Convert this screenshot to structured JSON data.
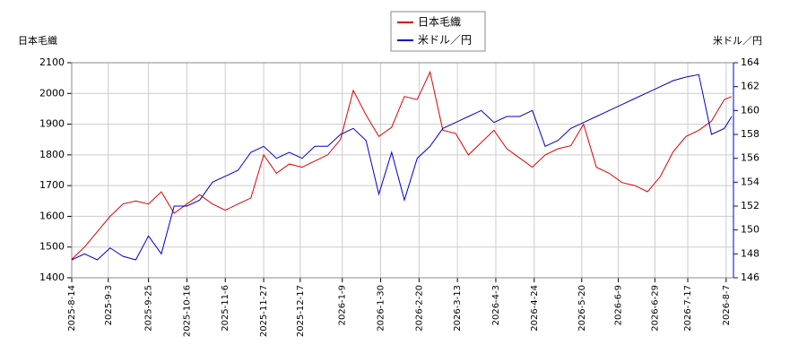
{
  "chart_data": {
    "type": "line",
    "ylabel": "日本毛織",
    "y2label": "米ドル／円",
    "x": [
      "2025-8-14",
      "2025-8-21",
      "2025-8-28",
      "2025-9-4",
      "2025-9-11",
      "2025-9-18",
      "2025-9-25",
      "2025-10-2",
      "2025-10-9",
      "2025-10-16",
      "2025-10-23",
      "2025-10-30",
      "2025-11-6",
      "2025-11-13",
      "2025-11-20",
      "2025-11-27",
      "2025-12-4",
      "2025-12-11",
      "2025-12-18",
      "2025-12-25",
      "2026-1-1",
      "2026-1-8",
      "2026-1-15",
      "2026-1-22",
      "2026-1-29",
      "2026-2-5",
      "2026-2-12",
      "2026-2-19",
      "2026-2-26",
      "2026-3-5",
      "2026-3-12",
      "2026-3-19",
      "2026-3-26",
      "2026-4-2",
      "2026-4-9",
      "2026-4-16",
      "2026-4-23",
      "2026-4-30",
      "2026-5-7",
      "2026-5-14",
      "2026-5-21",
      "2026-5-28",
      "2026-6-4",
      "2026-6-11",
      "2026-6-18",
      "2026-6-25",
      "2026-7-2",
      "2026-7-9",
      "2026-7-16",
      "2026-7-23",
      "2026-7-30",
      "2026-8-6",
      "2026-8-10"
    ],
    "series": [
      {
        "name": "日本毛織",
        "color": "#dd0000",
        "values": [
          1460,
          1500,
          1550,
          1600,
          1640,
          1650,
          1640,
          1680,
          1610,
          1640,
          1670,
          1640,
          1620,
          1640,
          1660,
          1800,
          1740,
          1770,
          1760,
          1780,
          1800,
          1850,
          2010,
          1930,
          1860,
          1890,
          1990,
          1980,
          2070,
          1880,
          1870,
          1800,
          1840,
          1880,
          1820,
          1790,
          1760,
          1800,
          1820,
          1830,
          1900,
          1760,
          1740,
          1710,
          1700,
          1680,
          1730,
          1810,
          1860,
          1880,
          1910,
          1980,
          1990
        ]
      },
      {
        "name": "米ドル／円",
        "color": "#0000cc",
        "axis": "y2",
        "values": [
          147.5,
          148,
          147.5,
          148.5,
          147.8,
          147.5,
          149.5,
          148,
          152,
          152,
          152.5,
          154,
          154.5,
          155,
          156.5,
          157,
          156,
          156.5,
          156,
          157,
          157,
          158,
          158.5,
          157.5,
          153,
          156.5,
          152.5,
          156,
          157,
          158.5,
          159,
          159.5,
          160,
          159,
          159.5,
          159.5,
          160,
          157,
          157.5,
          158.5,
          159,
          159.5,
          160,
          160.5,
          161,
          161.5,
          162,
          162.5,
          162.8,
          163,
          158,
          158.5,
          159.5
        ]
      }
    ],
    "xlim": [
      "2025-8-14",
      "2026-8-11"
    ],
    "xticks": [
      "2025-8-14",
      "2025-9-3",
      "2025-9-25",
      "2025-10-16",
      "2025-11-6",
      "2025-11-27",
      "2025-12-17",
      "2026-1-9",
      "2026-1-30",
      "2026-2-20",
      "2026-3-13",
      "2026-4-3",
      "2026-4-24",
      "2026-5-20",
      "2026-6-9",
      "2026-6-29",
      "2026-7-17",
      "2026-8-7"
    ],
    "ylim": [
      1400,
      2100
    ],
    "yticks": [
      1400,
      1500,
      1600,
      1700,
      1800,
      1900,
      2000,
      2100
    ],
    "y2lim": [
      146,
      164
    ],
    "y2ticks": [
      146,
      148,
      150,
      152,
      154,
      156,
      158,
      160,
      162,
      164
    ],
    "grid": true,
    "legend": "top"
  }
}
